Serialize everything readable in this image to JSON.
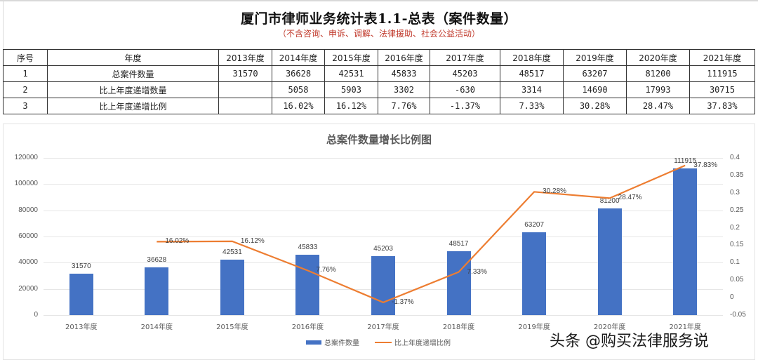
{
  "header": {
    "title": "厦门市律师业务统计表1.1-总表（案件数量）",
    "subtitle": "（不含咨询、申诉、调解、法律援助、社会公益活动）"
  },
  "table": {
    "columns": [
      "序号",
      "年度",
      "2013年度",
      "2014年度",
      "2015年度",
      "2016年度",
      "2017年度",
      "2018年度",
      "2019年度",
      "2020年度",
      "2021年度"
    ],
    "rows": [
      [
        "1",
        "总案件数量",
        "31570",
        "36628",
        "42531",
        "45833",
        "45203",
        "48517",
        "63207",
        "81200",
        "111915"
      ],
      [
        "2",
        "比上年度递增数量",
        "",
        "5058",
        "5903",
        "3302",
        "-630",
        "3314",
        "14690",
        "17993",
        "30715"
      ],
      [
        "3",
        "比上年度递增比例",
        "",
        "16.02%",
        "16.12%",
        "7.76%",
        "-1.37%",
        "7.33%",
        "30.28%",
        "28.47%",
        "37.83%"
      ]
    ]
  },
  "chart_data": {
    "type": "bar",
    "title": "总案件数量增长比例图",
    "categories": [
      "2013年度",
      "2014年度",
      "2015年度",
      "2016年度",
      "2017年度",
      "2018年度",
      "2019年度",
      "2020年度",
      "2021年度"
    ],
    "series": [
      {
        "name": "总案件数量",
        "type": "bar",
        "axis": "left",
        "color": "#4472c4",
        "values": [
          31570,
          36628,
          42531,
          45833,
          45203,
          48517,
          63207,
          81200,
          111915
        ],
        "labels": [
          "31570",
          "36628",
          "42531",
          "45833",
          "45203",
          "48517",
          "63207",
          "81200",
          "111915"
        ]
      },
      {
        "name": "比上年度递增比例",
        "type": "line",
        "axis": "right",
        "color": "#ed7d31",
        "values": [
          null,
          0.1602,
          0.1612,
          0.0776,
          -0.0137,
          0.0733,
          0.3028,
          0.2847,
          0.3783
        ],
        "labels": [
          "",
          "16.02%",
          "16.12%",
          "7.76%",
          "-1.37%",
          "7.33%",
          "30.28%",
          "28.47%",
          "37.83%"
        ]
      }
    ],
    "y_left": {
      "ticks": [
        "0",
        "20000",
        "40000",
        "60000",
        "80000",
        "100000",
        "120000"
      ],
      "range": [
        0,
        120000
      ]
    },
    "y_right": {
      "ticks": [
        "-0.05",
        "0",
        "0.05",
        "0.1",
        "0.15",
        "0.2",
        "0.25",
        "0.3",
        "0.35",
        "0.4"
      ],
      "range": [
        -0.05,
        0.4
      ]
    },
    "grid": true,
    "legend_position": "bottom",
    "xlabel": "",
    "ylabel": ""
  },
  "legend": {
    "bar_label": "总案件数量",
    "line_label": "比上年度递增比例"
  },
  "watermark": "头条 @购买法律服务说"
}
